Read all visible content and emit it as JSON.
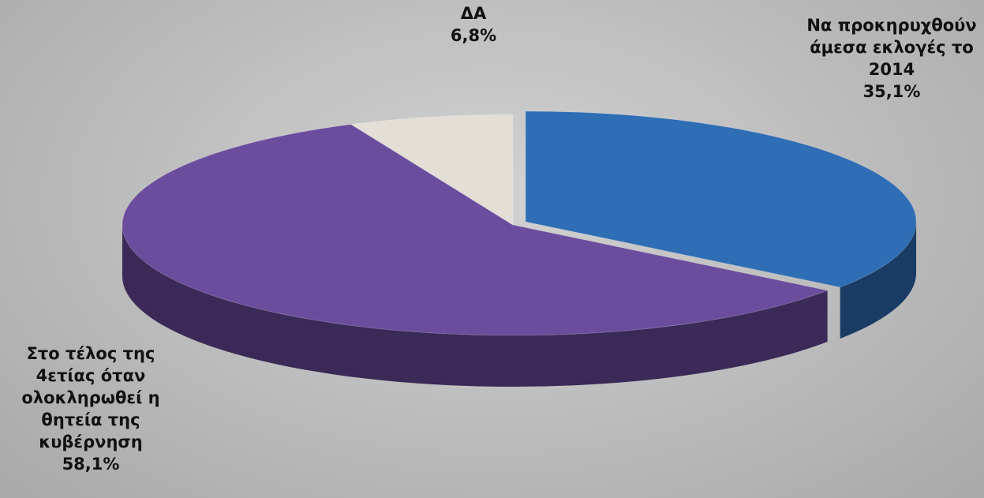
{
  "chart_data": {
    "type": "pie3d",
    "categories": [
      "Να προκηρυχθούν άμεσα εκλογές το 2014",
      "Στο τέλος της 4ετίας όταν ολοκληρωθεί η θητεία της κυβέρνηση",
      "ΔΑ"
    ],
    "values": [
      35.1,
      58.1,
      6.8
    ],
    "value_labels": [
      "35,1%",
      "58,1%",
      "6,8%"
    ],
    "colors": [
      "#2f6db5",
      "#6b4d9e",
      "#e3ded6"
    ]
  }
}
